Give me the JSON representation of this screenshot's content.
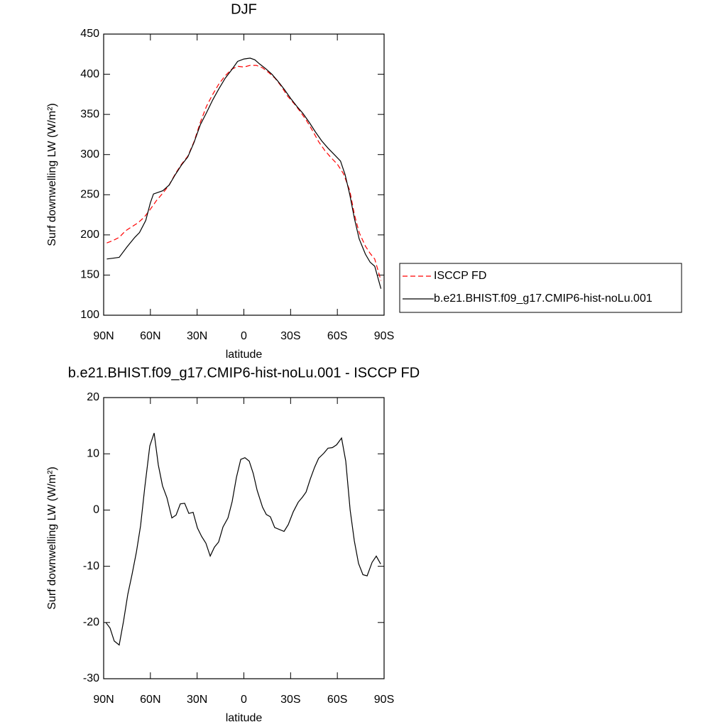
{
  "chart_data": [
    {
      "type": "line",
      "title": "DJF",
      "xlabel": "latitude",
      "ylabel": "Surf downwelling LW (W/m²)",
      "xlim": [
        90,
        -90
      ],
      "xticks": [
        {
          "value": 90,
          "label": "90N"
        },
        {
          "value": 60,
          "label": "60N"
        },
        {
          "value": 30,
          "label": "30N"
        },
        0,
        {
          "value": -30,
          "label": "30S"
        },
        {
          "value": -60,
          "label": "60S"
        },
        {
          "value": -90,
          "label": "90S"
        }
      ],
      "ylim": [
        100,
        450
      ],
      "yticks": [
        100,
        150,
        200,
        250,
        300,
        350,
        400,
        450
      ],
      "legend": "right",
      "series": [
        {
          "name": "ISCCP FD",
          "color": "#ff0000",
          "dashed": true,
          "x": [
            88,
            84,
            80,
            76,
            72,
            68,
            64,
            60,
            56,
            52,
            48,
            44,
            40,
            36,
            32,
            28,
            24,
            20,
            16,
            12,
            8,
            4,
            0,
            -4,
            -8,
            -12,
            -16,
            -20,
            -24,
            -28,
            -32,
            -36,
            -40,
            -44,
            -48,
            -52,
            -56,
            -60,
            -64,
            -68,
            -71,
            -74,
            -78,
            -81,
            -84,
            -88
          ],
          "values": [
            190,
            193,
            197,
            205,
            210,
            215,
            222,
            232,
            243,
            252,
            262,
            276,
            288,
            298,
            316,
            340,
            360,
            375,
            388,
            398,
            406,
            410,
            409,
            411,
            411,
            408,
            402,
            395,
            385,
            373,
            364,
            354,
            343,
            330,
            316,
            305,
            296,
            288,
            276,
            255,
            225,
            203,
            186,
            177,
            170,
            143
          ]
        },
        {
          "name": "b.e21.BHIST.f09_g17.CMIP6-hist-noLu.001",
          "color": "#000000",
          "dashed": false,
          "x": [
            88,
            84,
            80,
            75,
            70,
            67,
            63,
            60,
            58,
            55,
            52,
            48,
            44,
            40,
            36,
            32,
            28,
            24,
            20,
            16,
            12,
            8,
            4,
            0,
            -4,
            -7,
            -10,
            -14,
            -18,
            -22,
            -26,
            -30,
            -34,
            -38,
            -42,
            -46,
            -50,
            -54,
            -58,
            -62,
            -65,
            -68,
            -71,
            -74,
            -78,
            -81,
            -84,
            -88
          ],
          "values": [
            170,
            171,
            172,
            185,
            197,
            203,
            218,
            240,
            251,
            253,
            255,
            262,
            275,
            287,
            297,
            315,
            337,
            352,
            368,
            382,
            395,
            405,
            416,
            419,
            420,
            418,
            413,
            407,
            400,
            391,
            381,
            370,
            360,
            351,
            340,
            328,
            317,
            308,
            300,
            292,
            275,
            250,
            220,
            195,
            176,
            166,
            161,
            133
          ]
        }
      ]
    },
    {
      "type": "line",
      "title": "b.e21.BHIST.f09_g17.CMIP6-hist-noLu.001 - ISCCP FD",
      "xlabel": "latitude",
      "ylabel": "Surf downwelling LW (W/m²)",
      "xlim": [
        90,
        -90
      ],
      "xticks": [
        {
          "value": 90,
          "label": "90N"
        },
        {
          "value": 60,
          "label": "60N"
        },
        {
          "value": 30,
          "label": "30N"
        },
        0,
        {
          "value": -30,
          "label": "30S"
        },
        {
          "value": -60,
          "label": "60S"
        },
        {
          "value": -90,
          "label": "90S"
        }
      ],
      "ylim": [
        -30,
        20
      ],
      "yticks": [
        -30,
        -20,
        -10,
        0,
        10,
        20
      ],
      "series": [
        {
          "color": "#000000",
          "dashed": false,
          "x": [
            88.6,
            85.9,
            83.2,
            80,
            77.2,
            74.5,
            71.8,
            69,
            66.3,
            63.6,
            60.4,
            57.6,
            54.9,
            52.2,
            49.4,
            46.2,
            43.5,
            40.8,
            38,
            35.3,
            32.6,
            29.8,
            27.1,
            24.4,
            21.6,
            18.9,
            16.2,
            13.4,
            10.2,
            7.5,
            4.8,
            2,
            -0.7,
            -3.4,
            -6,
            -8.5,
            -12,
            -14.4,
            -17,
            -19.8,
            -25.8,
            -28.5,
            -31.7,
            -34.9,
            -37.6,
            -39.9,
            -42.6,
            -45.4,
            -48,
            -51.3,
            -54,
            -56.8,
            -59.5,
            -62.7,
            -65.4,
            -68.2,
            -70.9,
            -73.6,
            -76.4,
            -79.1,
            -82.3,
            -85,
            -87.8
          ],
          "values": [
            -20,
            -21,
            -23.3,
            -24,
            -19.7,
            -15,
            -11.5,
            -7.5,
            -2.8,
            4,
            11.4,
            13.7,
            8,
            4.3,
            2.2,
            -1.4,
            -0.9,
            1.1,
            1.2,
            -0.6,
            -0.4,
            -3.2,
            -4.7,
            -5.9,
            -8.2,
            -6.6,
            -5.7,
            -3,
            -1.4,
            1.5,
            5.8,
            9,
            9.3,
            8.7,
            6.5,
            3.5,
            0.5,
            -0.8,
            -1.2,
            -3.1,
            -3.8,
            -2.6,
            -0.3,
            1.4,
            2.3,
            3.2,
            5.5,
            7.6,
            9.2,
            10.1,
            11,
            11.1,
            11.6,
            12.8,
            8.7,
            0,
            -5.5,
            -9.5,
            -11.5,
            -11.7,
            -9.3,
            -8.2,
            -9.6
          ]
        }
      ]
    }
  ]
}
